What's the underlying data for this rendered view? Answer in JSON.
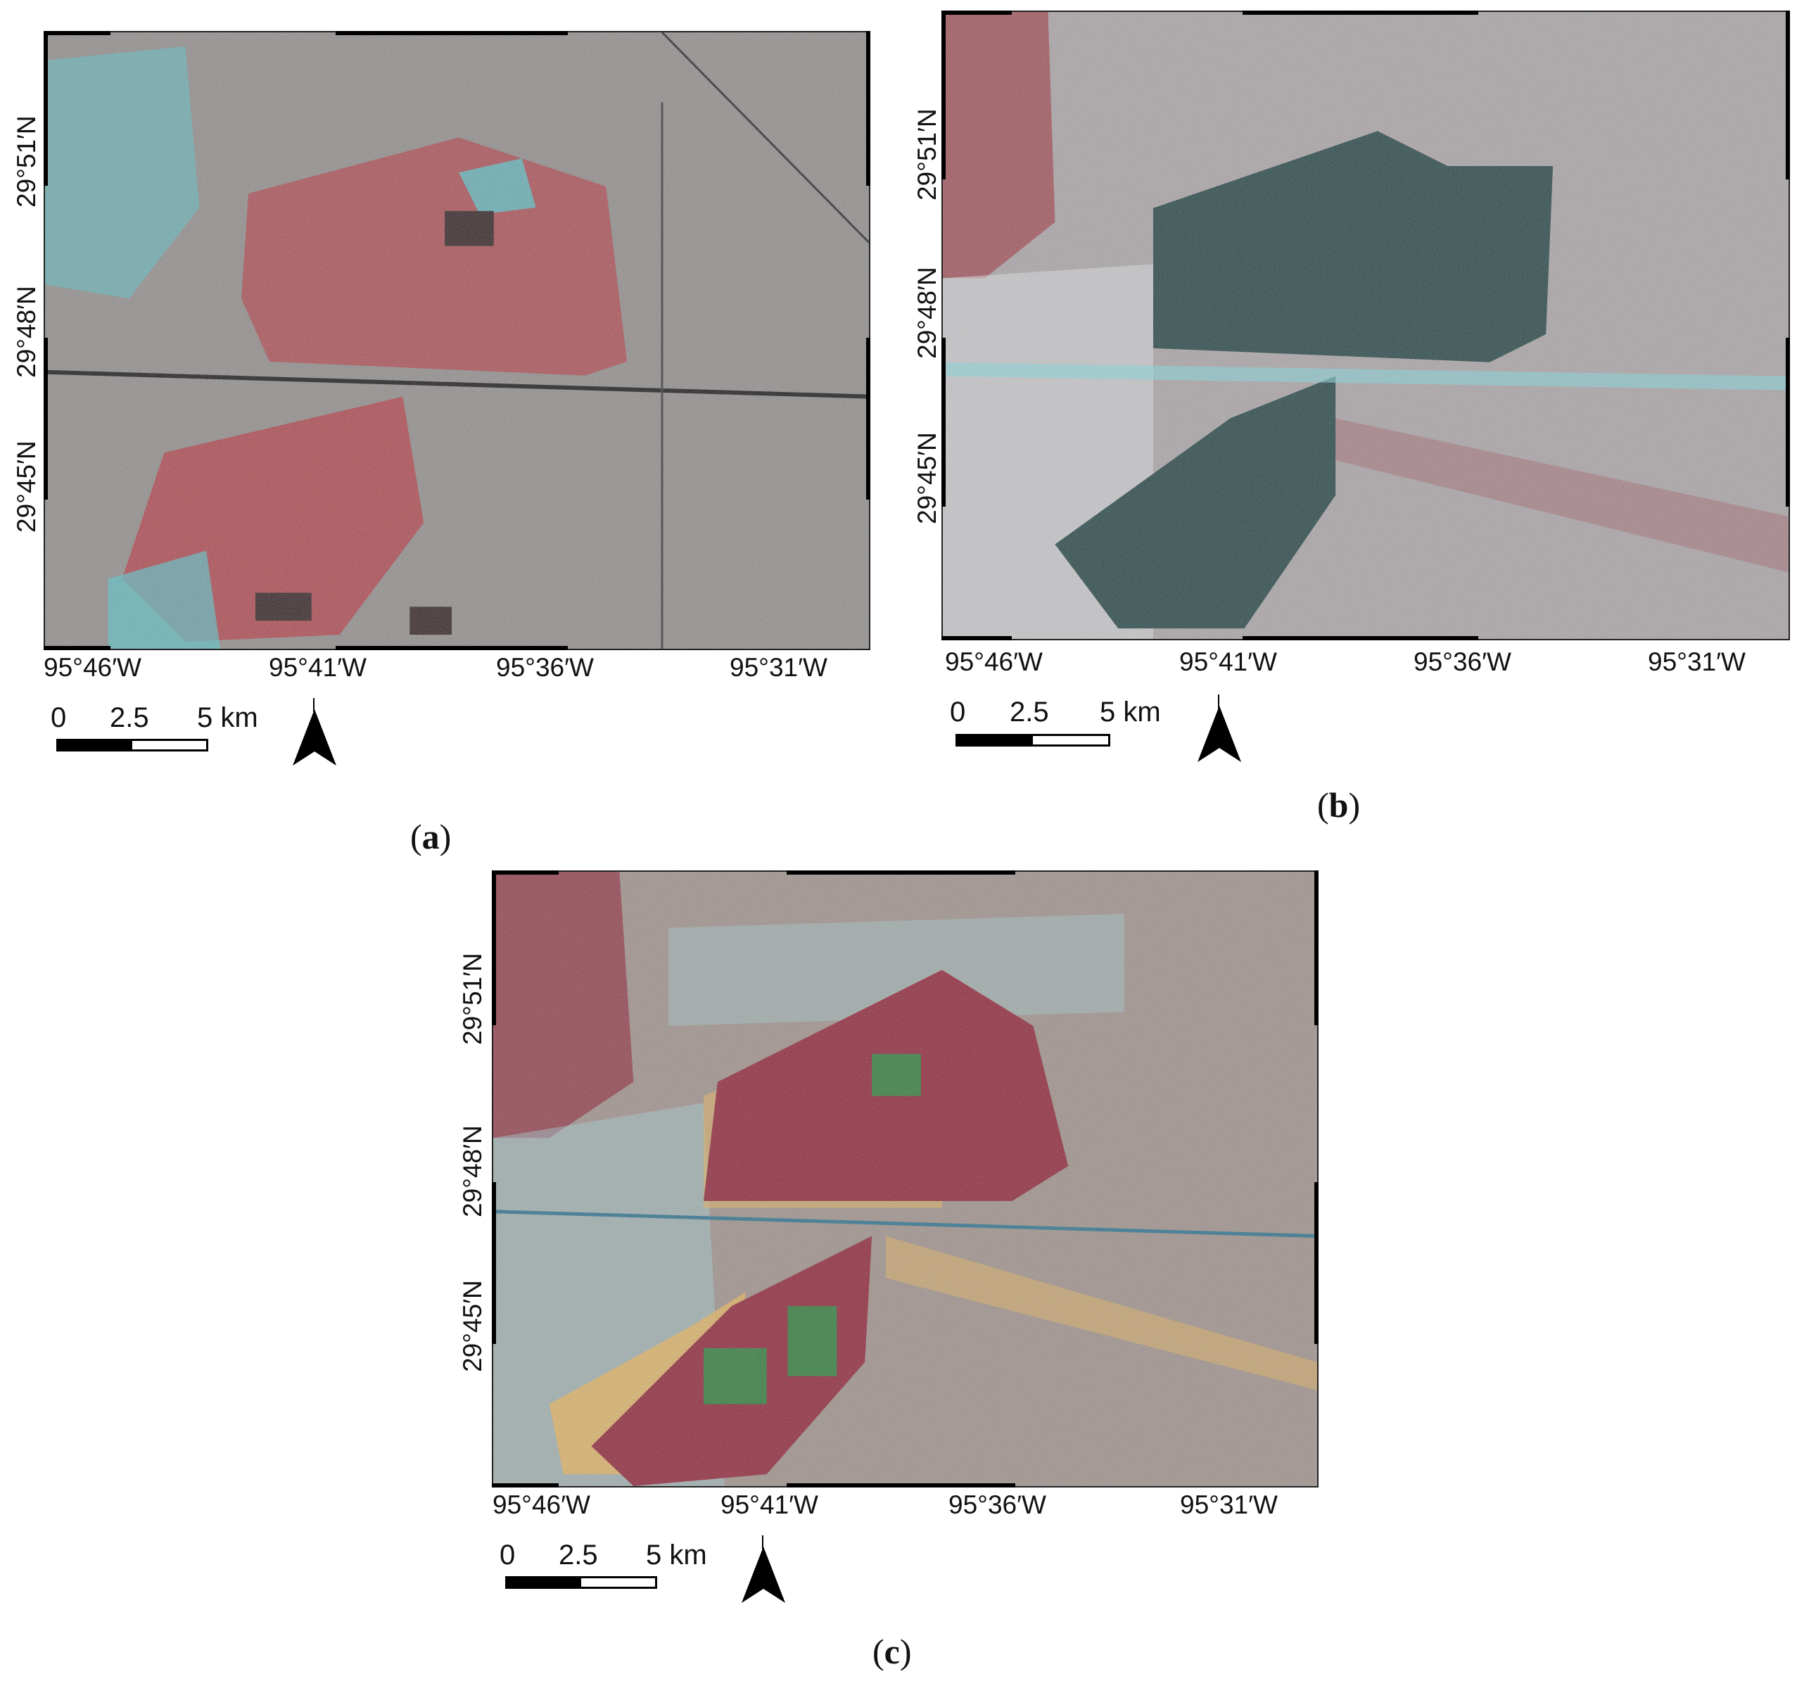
{
  "panels": [
    {
      "id": "a",
      "label": "a",
      "lon_labels": [
        "95°46′W",
        "95°41′W",
        "95°36′W",
        "95°31′W"
      ],
      "lat_labels": [
        "29°51′N",
        "29°48′N",
        "29°45′N"
      ],
      "scale_labels": [
        "0",
        "2.5",
        "5 km"
      ],
      "colors": {
        "base": "#8f8a8a",
        "flood": "#b2363e",
        "urban": "#d9dde0",
        "water": "#4fc4cc",
        "dark": "#2b1b1d"
      }
    },
    {
      "id": "b",
      "label": "b",
      "lon_labels": [
        "95°46′W",
        "95°41′W",
        "95°36′W",
        "95°31′W"
      ],
      "lat_labels": [
        "29°51′N",
        "29°48′N",
        "29°45′N"
      ],
      "scale_labels": [
        "0",
        "2.5",
        "5 km"
      ],
      "colors": {
        "base": "#a9a3a6",
        "flood": "#1f3f40",
        "urban": "#e4e8ea",
        "water": "#7fd8de",
        "dark": "#9c3a44"
      }
    },
    {
      "id": "c",
      "label": "c",
      "lon_labels": [
        "95°46′W",
        "95°41′W",
        "95°36′W",
        "95°31′W"
      ],
      "lat_labels": [
        "29°51′N",
        "29°48′N",
        "29°45′N"
      ],
      "scale_labels": [
        "0",
        "2.5",
        "5 km"
      ],
      "colors": {
        "base": "#9d8f8a",
        "flood": "#8e2337",
        "urban": "#9fd3d8",
        "water": "#e4b25a",
        "dark": "#2f7a3a"
      }
    }
  ]
}
